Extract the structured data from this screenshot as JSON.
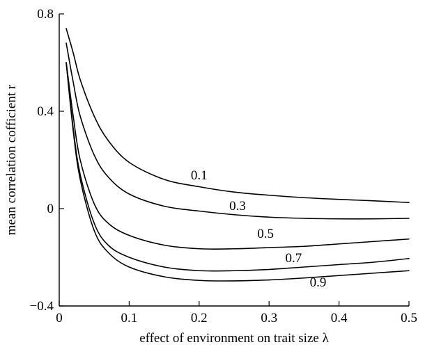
{
  "chart_data": {
    "type": "line",
    "xlabel": "effect of environment on trait size λ",
    "ylabel": "mean correlation cofficient r",
    "xlim": [
      0,
      0.5
    ],
    "ylim": [
      -0.4,
      0.8
    ],
    "x_ticks": [
      0,
      0.1,
      0.2,
      0.3,
      0.4,
      0.5
    ],
    "x_tick_labels": [
      "0",
      "0.1",
      "0.2",
      "0.3",
      "0.4",
      "0.5"
    ],
    "y_ticks": [
      -0.4,
      0,
      0.4,
      0.8
    ],
    "y_tick_labels": [
      "−0.4",
      "0",
      "0.4",
      "0.8"
    ],
    "grid": false,
    "legend": "none",
    "series": [
      {
        "name": "0.1",
        "x": [
          0.01,
          0.02,
          0.03,
          0.05,
          0.07,
          0.1,
          0.15,
          0.2,
          0.25,
          0.3,
          0.35,
          0.4,
          0.45,
          0.5
        ],
        "y": [
          0.74,
          0.64,
          0.53,
          0.38,
          0.28,
          0.19,
          0.12,
          0.09,
          0.068,
          0.055,
          0.045,
          0.038,
          0.032,
          0.025
        ]
      },
      {
        "name": "0.3",
        "x": [
          0.01,
          0.02,
          0.03,
          0.05,
          0.07,
          0.1,
          0.15,
          0.2,
          0.25,
          0.3,
          0.35,
          0.4,
          0.45,
          0.5
        ],
        "y": [
          0.68,
          0.52,
          0.38,
          0.22,
          0.13,
          0.06,
          0.01,
          -0.01,
          -0.025,
          -0.035,
          -0.04,
          -0.042,
          -0.042,
          -0.04
        ]
      },
      {
        "name": "0.5",
        "x": [
          0.01,
          0.02,
          0.03,
          0.05,
          0.07,
          0.1,
          0.15,
          0.2,
          0.25,
          0.3,
          0.35,
          0.4,
          0.45,
          0.5
        ],
        "y": [
          0.6,
          0.38,
          0.2,
          0.02,
          -0.06,
          -0.11,
          -0.15,
          -0.165,
          -0.165,
          -0.16,
          -0.155,
          -0.145,
          -0.135,
          -0.125
        ]
      },
      {
        "name": "0.7",
        "x": [
          0.01,
          0.02,
          0.03,
          0.05,
          0.07,
          0.1,
          0.15,
          0.2,
          0.25,
          0.3,
          0.35,
          0.4,
          0.45,
          0.5
        ],
        "y": [
          0.6,
          0.33,
          0.14,
          -0.06,
          -0.15,
          -0.2,
          -0.24,
          -0.255,
          -0.255,
          -0.25,
          -0.24,
          -0.23,
          -0.22,
          -0.205
        ]
      },
      {
        "name": "0.9",
        "x": [
          0.01,
          0.02,
          0.03,
          0.05,
          0.07,
          0.1,
          0.15,
          0.2,
          0.25,
          0.3,
          0.35,
          0.4,
          0.45,
          0.5
        ],
        "y": [
          0.6,
          0.32,
          0.12,
          -0.09,
          -0.18,
          -0.24,
          -0.28,
          -0.295,
          -0.297,
          -0.293,
          -0.285,
          -0.275,
          -0.265,
          -0.255
        ]
      }
    ],
    "series_label_positions": [
      {
        "name": "0.1",
        "x": 0.2,
        "y": 0.12
      },
      {
        "name": "0.3",
        "x": 0.255,
        "y": -0.005
      },
      {
        "name": "0.5",
        "x": 0.295,
        "y": -0.12
      },
      {
        "name": "0.7",
        "x": 0.335,
        "y": -0.22
      },
      {
        "name": "0.9",
        "x": 0.37,
        "y": -0.32
      }
    ]
  }
}
